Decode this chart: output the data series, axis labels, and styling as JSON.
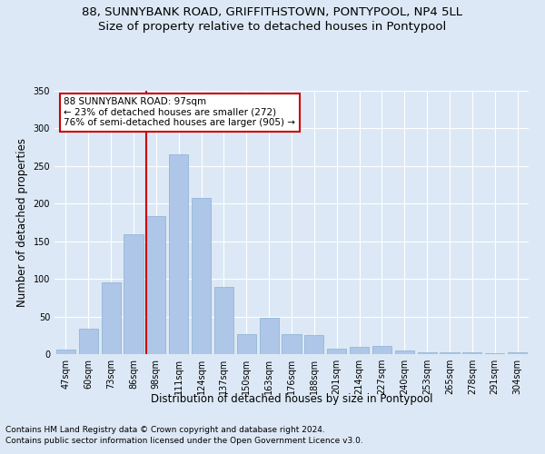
{
  "title1": "88, SUNNYBANK ROAD, GRIFFITHSTOWN, PONTYPOOL, NP4 5LL",
  "title2": "Size of property relative to detached houses in Pontypool",
  "xlabel": "Distribution of detached houses by size in Pontypool",
  "ylabel": "Number of detached properties",
  "categories": [
    "47sqm",
    "60sqm",
    "73sqm",
    "86sqm",
    "98sqm",
    "111sqm",
    "124sqm",
    "137sqm",
    "150sqm",
    "163sqm",
    "176sqm",
    "188sqm",
    "201sqm",
    "214sqm",
    "227sqm",
    "240sqm",
    "253sqm",
    "265sqm",
    "278sqm",
    "291sqm",
    "304sqm"
  ],
  "values": [
    6,
    34,
    95,
    159,
    183,
    265,
    208,
    89,
    27,
    48,
    27,
    25,
    7,
    10,
    11,
    5,
    2,
    2,
    2,
    1,
    3
  ],
  "bar_color": "#aec6e8",
  "bar_edge_color": "#8ab0d0",
  "vline_color": "#cc0000",
  "vline_index": 4,
  "annotation_lines": [
    "88 SUNNYBANK ROAD: 97sqm",
    "← 23% of detached houses are smaller (272)",
    "76% of semi-detached houses are larger (905) →"
  ],
  "annotation_box_facecolor": "#ffffff",
  "annotation_box_edgecolor": "#cc0000",
  "ylim": [
    0,
    350
  ],
  "yticks": [
    0,
    50,
    100,
    150,
    200,
    250,
    300,
    350
  ],
  "footer1": "Contains HM Land Registry data © Crown copyright and database right 2024.",
  "footer2": "Contains public sector information licensed under the Open Government Licence v3.0.",
  "bg_color": "#dce8f5",
  "plot_bg_color": "#dce8f5",
  "grid_color": "#ffffff",
  "title1_fontsize": 9.5,
  "title2_fontsize": 9.5,
  "axis_label_fontsize": 8.5,
  "tick_fontsize": 7,
  "annotation_fontsize": 7.5,
  "footer_fontsize": 6.5
}
